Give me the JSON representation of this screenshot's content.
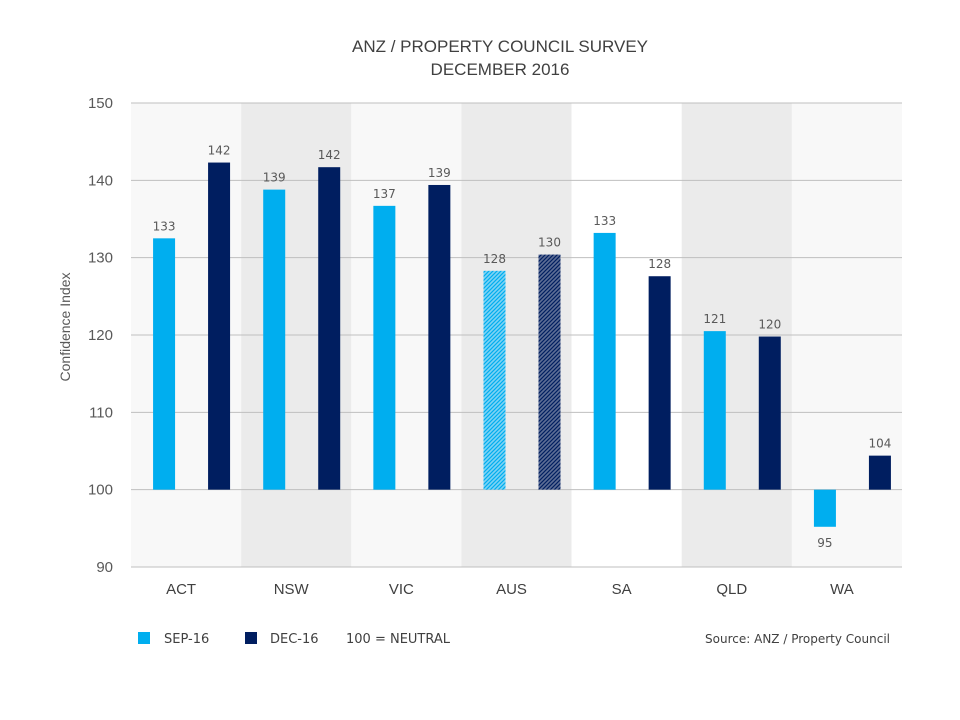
{
  "chart_data": {
    "type": "bar",
    "title": [
      "ANZ / PROPERTY COUNCIL SURVEY",
      "DECEMBER 2016"
    ],
    "ylabel": "Confidence Index",
    "xlabel": "",
    "ylim": [
      90,
      150
    ],
    "baseline": 100,
    "yticks": [
      90,
      100,
      110,
      120,
      130,
      140,
      150
    ],
    "categories": [
      "ACT",
      "NSW",
      "VIC",
      "AUS",
      "SA",
      "QLD",
      "WA"
    ],
    "series": [
      {
        "name": "SEP-16",
        "color": "#00AEEF",
        "values": [
          132.5,
          138.8,
          136.7,
          128.3,
          133.2,
          120.5,
          95.2
        ],
        "labels": [
          "133",
          "139",
          "137",
          "128",
          "133",
          "121",
          "95"
        ]
      },
      {
        "name": "DEC-16",
        "color": "#001E60",
        "values": [
          142.3,
          141.7,
          139.4,
          130.4,
          127.6,
          119.8,
          104.4
        ],
        "labels": [
          "142",
          "142",
          "139",
          "130",
          "128",
          "120",
          "104"
        ]
      }
    ],
    "shaded_categories": [
      "NSW",
      "AUS",
      "QLD"
    ],
    "hatched_categories": [
      "AUS"
    ],
    "grid": true,
    "legend_position": "bottom-left",
    "legend_note": "100 = NEUTRAL",
    "source": "Source: ANZ / Property Council"
  },
  "colors": {
    "sep16": "#00AEEF",
    "dec16": "#001E60",
    "band_light": "#F8F8F8",
    "band_dark": "#EBEBEB",
    "grid": "#BFBFBF"
  }
}
